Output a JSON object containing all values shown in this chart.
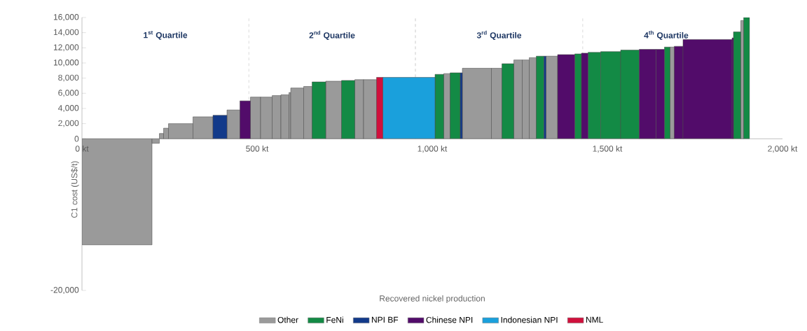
{
  "chart_data": {
    "type": "histogram",
    "xlabel": "Recovered nickel production",
    "ylabel": "C1 cost (US$/t)",
    "bins": [
      0,
      200,
      221,
      233,
      247,
      317,
      374,
      414,
      451,
      481,
      510,
      543,
      568,
      591,
      596,
      633,
      657,
      696,
      741,
      779,
      804,
      841,
      859,
      1008,
      1033,
      1051,
      1080,
      1086,
      1169,
      1199,
      1233,
      1257,
      1277,
      1297,
      1319,
      1325,
      1358,
      1407,
      1426,
      1445,
      1481,
      1538,
      1591,
      1639,
      1663,
      1679,
      1691,
      1716,
      1856,
      1860,
      1881,
      1889,
      1906
    ],
    "series": [
      {
        "name": "Other",
        "color": "#9a9a9a",
        "values": [
          -14000,
          -600,
          700,
          1400,
          2000,
          2900,
          null,
          3800,
          null,
          5500,
          5500,
          5700,
          5800,
          6100,
          6700,
          6900,
          null,
          7600,
          null,
          7800,
          7800,
          null,
          null,
          null,
          8600,
          null,
          null,
          9300,
          9300,
          null,
          10400,
          10400,
          10700,
          null,
          null,
          10900,
          null,
          null,
          null,
          null,
          null,
          null,
          null,
          null,
          null,
          12100,
          null,
          null,
          null,
          null,
          15600,
          null
        ]
      },
      {
        "name": "FeNi",
        "color": "#138a45",
        "values": [
          null,
          null,
          null,
          null,
          null,
          null,
          null,
          null,
          null,
          null,
          null,
          null,
          null,
          null,
          null,
          null,
          7500,
          null,
          7700,
          null,
          null,
          null,
          null,
          8500,
          null,
          8700,
          null,
          null,
          null,
          9900,
          null,
          null,
          null,
          10900,
          null,
          null,
          null,
          11200,
          null,
          11400,
          11500,
          11700,
          null,
          null,
          12100,
          null,
          null,
          null,
          null,
          14100,
          null,
          16000
        ]
      },
      {
        "name": "NPI BF",
        "color": "#123a8a",
        "values": [
          null,
          null,
          null,
          null,
          null,
          null,
          3100,
          null,
          null,
          null,
          null,
          null,
          null,
          null,
          null,
          null,
          null,
          null,
          null,
          null,
          null,
          null,
          null,
          null,
          null,
          null,
          8700,
          null,
          null,
          null,
          null,
          null,
          null,
          null,
          10900,
          null,
          null,
          null,
          null,
          null,
          null,
          null,
          null,
          null,
          null,
          null,
          null,
          null,
          null,
          null,
          null,
          null
        ]
      },
      {
        "name": "Chinese NPI",
        "color": "#520c6a",
        "values": [
          null,
          null,
          null,
          null,
          null,
          null,
          null,
          null,
          5000,
          null,
          null,
          null,
          null,
          null,
          null,
          null,
          null,
          null,
          null,
          null,
          null,
          null,
          null,
          null,
          null,
          null,
          null,
          null,
          null,
          null,
          null,
          null,
          null,
          null,
          null,
          null,
          11100,
          null,
          11300,
          null,
          null,
          null,
          11800,
          11800,
          null,
          null,
          12200,
          13100,
          13300,
          null,
          null,
          null
        ]
      },
      {
        "name": "Indonesian NPI",
        "color": "#1aa0dc",
        "values": [
          null,
          null,
          null,
          null,
          null,
          null,
          null,
          null,
          null,
          null,
          null,
          null,
          null,
          null,
          null,
          null,
          null,
          null,
          null,
          null,
          null,
          null,
          8100,
          null,
          null,
          null,
          null,
          null,
          null,
          null,
          null,
          null,
          null,
          null,
          null,
          null,
          null,
          null,
          null,
          null,
          null,
          null,
          null,
          null,
          null,
          null,
          null,
          null,
          null,
          null,
          null,
          null
        ]
      },
      {
        "name": "NML",
        "color": "#d0103c",
        "values": [
          null,
          null,
          null,
          null,
          null,
          null,
          null,
          null,
          null,
          null,
          null,
          null,
          null,
          null,
          null,
          null,
          null,
          null,
          null,
          null,
          null,
          8100,
          null,
          null,
          null,
          null,
          null,
          null,
          null,
          null,
          null,
          null,
          null,
          null,
          null,
          null,
          null,
          null,
          null,
          null,
          null,
          null,
          null,
          null,
          null,
          null,
          null,
          null,
          null,
          null,
          null,
          null
        ]
      }
    ],
    "xlim": [
      0,
      2000
    ],
    "xticks": [
      {
        "value": 0,
        "label": "0 kt"
      },
      {
        "value": 500,
        "label": "500 kt"
      },
      {
        "value": 1000,
        "label": "1,000 kt"
      },
      {
        "value": 1500,
        "label": "1,500 kt"
      },
      {
        "value": 2000,
        "label": "2,000 kt"
      }
    ],
    "ylim": [
      -20000,
      16000
    ],
    "yticks": [
      {
        "value": -20000,
        "label": "-20,000"
      },
      {
        "value": 0,
        "label": "0"
      },
      {
        "value": 2000,
        "label": "2,000"
      },
      {
        "value": 4000,
        "label": "4,000"
      },
      {
        "value": 6000,
        "label": "6,000"
      },
      {
        "value": 8000,
        "label": "8,000"
      },
      {
        "value": 10000,
        "label": "10,000"
      },
      {
        "value": 12000,
        "label": "12,000"
      },
      {
        "value": 14000,
        "label": "14,000"
      },
      {
        "value": 16000,
        "label": "16,000"
      }
    ],
    "ref_lines": [
      {
        "axis": "x",
        "value": 476,
        "color": "#9a9a9a",
        "line_style": "dashed"
      },
      {
        "axis": "x",
        "value": 952,
        "color": "#9a9a9a",
        "line_style": "dashed"
      },
      {
        "axis": "x",
        "value": 1430,
        "color": "#9a9a9a",
        "line_style": "dashed"
      }
    ],
    "annotations": [
      "1$^{st}$ Quartile",
      "2$^{nd}$ Quartile",
      "3$^{rd}$ Quartile",
      "4$^{th}$ Quartile"
    ],
    "legend": "bottom",
    "grid": false
  }
}
